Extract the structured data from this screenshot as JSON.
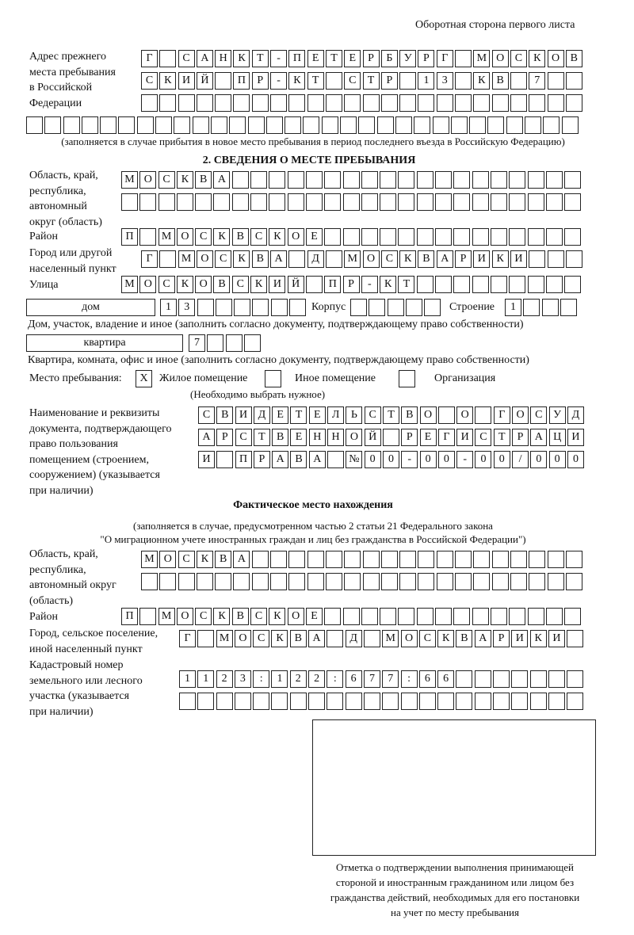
{
  "header": {
    "page_side": "Оборотная сторона первого листа"
  },
  "previous_address": {
    "label": [
      "Адрес прежнего",
      "места пребывания",
      "в Российской",
      "Федерации"
    ],
    "rows": [
      "Г САНКТ-ПЕТЕРБУРГ МОСКОВ",
      "СКИЙ ПР-КТ СТР 13 КВ 7",
      "",
      ""
    ],
    "note": "(заполняется в случае прибытия в новое место пребывания в период последнего въезда в Российскую Федерацию)"
  },
  "section2": {
    "title": "2. СВЕДЕНИЯ О МЕСТЕ ПРЕБЫВАНИЯ",
    "region": {
      "label": [
        "Область, край,",
        "республика,",
        "автономный",
        "округ (область)"
      ],
      "rows": [
        "МОСКВА",
        ""
      ]
    },
    "district": {
      "label": "Район",
      "value": "П МОСКВСКОЕ"
    },
    "city": {
      "label": [
        "Город или другой",
        "населенный пункт"
      ],
      "value": "Г МОСКВА Д МОСКВАРИКИ"
    },
    "street": {
      "label": "Улица",
      "value": "МОСКОВСКИЙ ПР-КТ"
    },
    "house": {
      "type": "дом",
      "number": "13",
      "korpus_label": "Корпус",
      "korpus": "",
      "stroenie_label": "Строение",
      "stroenie": "1",
      "caption": "Дом, участок, владение и иное (заполнить согласно документу, подтверждающему право собственности)"
    },
    "apartment": {
      "type": "квартира",
      "number": "7",
      "caption": "Квартира, комната, офис и иное (заполнить согласно документу, подтверждающему право собственности)"
    },
    "place": {
      "label": "Место пребывания:",
      "options": [
        {
          "label": "Жилое помещение",
          "mark": "X"
        },
        {
          "label": "Иное помещение",
          "mark": ""
        },
        {
          "label": "Организация",
          "mark": ""
        }
      ],
      "hint": "(Необходимо выбрать нужное)"
    },
    "document": {
      "label": [
        "Наименование и реквизиты",
        "документа, подтверждающего",
        "право пользования",
        "помещением (строением,",
        "сооружением) (указывается",
        "при наличии)"
      ],
      "rows": [
        "СВИДЕТЕЛЬСТВО О ГОСУД",
        "АРСТВЕННОЙ РЕГИСТРАЦИ",
        "И ПРАВА №00-00-00/000"
      ]
    }
  },
  "actual": {
    "title": "Фактическое место нахождения",
    "note": [
      "(заполняется в случае, предусмотренном частью 2 статьи 21 Федерального закона",
      "\"О миграционном учете иностранных граждан и лиц без гражданства в Российской Федерации\")"
    ],
    "region": {
      "label": [
        "Область, край,",
        "республика,",
        "автономный округ",
        "(область)"
      ],
      "rows": [
        "МОСКВА",
        ""
      ]
    },
    "district": {
      "label": "Район",
      "value": "П МОСКВСКОЕ"
    },
    "city": {
      "label": [
        "Город, сельское поселение,",
        "иной населенный пункт"
      ],
      "value": "Г МОСКВА Д МОСКВАРИКИ"
    },
    "cadastral": {
      "label": [
        "Кадастровый номер",
        "земельного или лесного",
        "участка (указывается",
        "при наличии)"
      ],
      "rows": [
        "1123:122:677:66",
        ""
      ]
    }
  },
  "stamp": {
    "caption": [
      "Отметка о подтверждении выполнения принимающей",
      "стороной и иностранным гражданином или лицом без",
      "гражданства действий, необходимых для его постановки",
      "на учет по месту пребывания"
    ]
  }
}
